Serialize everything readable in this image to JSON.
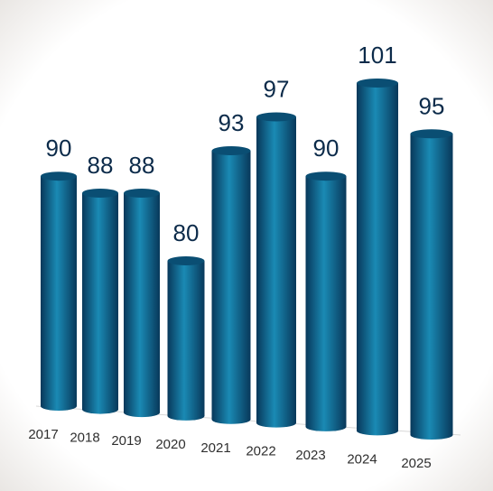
{
  "chart_data": {
    "type": "bar",
    "categories": [
      "2017",
      "2018",
      "2019",
      "2020",
      "2021",
      "2022",
      "2023",
      "2024",
      "2025"
    ],
    "values": [
      90,
      88,
      88,
      80,
      93,
      97,
      90,
      101,
      95
    ],
    "value_labels": [
      "90",
      "88",
      "88",
      "80",
      "93",
      "97",
      "90",
      "101",
      "95"
    ],
    "title": "",
    "xlabel": "",
    "ylabel": "",
    "ylim": [
      0,
      101
    ],
    "grid": false,
    "legend": "none",
    "colors": {
      "bar_dark": "#08385a",
      "bar_mid": "#0f6f98",
      "bar_light": "#1a8ab4",
      "bar_top": "#0a4e73",
      "label_text": "#0c2b4a",
      "tick_text": "#2f2f2f"
    }
  }
}
